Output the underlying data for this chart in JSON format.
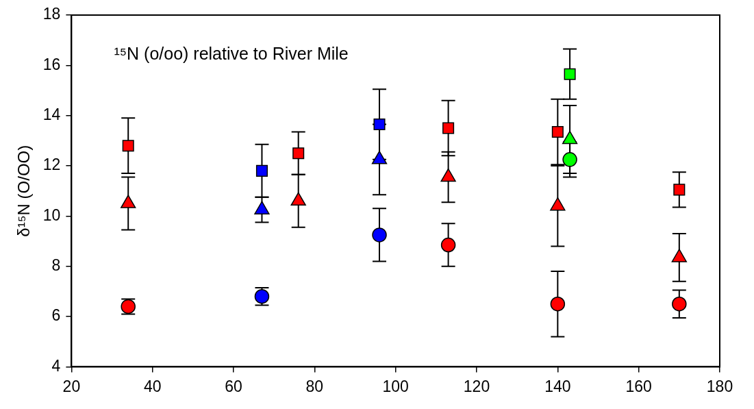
{
  "chart_data": {
    "type": "scatter",
    "ylabel": "δ¹⁵N (O/OO)",
    "annotations": [
      "¹⁵N (o/oo) relative to River Mile"
    ],
    "xlim": [
      20,
      180
    ],
    "xticks": [
      20,
      40,
      60,
      80,
      100,
      120,
      140,
      160,
      180
    ],
    "ylim": [
      4,
      18
    ],
    "yticks": [
      4,
      6,
      8,
      10,
      12,
      14,
      16,
      18
    ],
    "grid": false,
    "legend": false,
    "series": [
      {
        "color": "#ff0000",
        "marker": "square",
        "x": [
          34,
          76,
          113,
          140,
          170
        ],
        "values": [
          12.8,
          12.5,
          13.5,
          13.35,
          11.05
        ],
        "errors": [
          1.1,
          0.85,
          1.1,
          1.3,
          0.7
        ]
      },
      {
        "color": "#ff0000",
        "marker": "triangle",
        "x": [
          34,
          76,
          113,
          140,
          170
        ],
        "values": [
          10.5,
          10.6,
          11.55,
          10.4,
          8.35
        ],
        "errors": [
          1.05,
          1.05,
          1.0,
          1.6,
          0.95
        ]
      },
      {
        "color": "#ff0000",
        "marker": "circle",
        "x": [
          34,
          113,
          140,
          170
        ],
        "values": [
          6.4,
          8.85,
          6.5,
          6.5
        ],
        "errors": [
          0.3,
          0.85,
          1.3,
          0.55
        ]
      },
      {
        "color": "#0000ff",
        "marker": "square",
        "x": [
          67,
          96
        ],
        "values": [
          11.8,
          13.65
        ],
        "errors": [
          1.05,
          1.4
        ]
      },
      {
        "color": "#0000ff",
        "marker": "triangle",
        "x": [
          67,
          96
        ],
        "values": [
          10.25,
          12.25
        ],
        "errors": [
          0.5,
          1.4
        ]
      },
      {
        "color": "#0000ff",
        "marker": "circle",
        "x": [
          67,
          96
        ],
        "values": [
          6.8,
          9.25
        ],
        "errors": [
          0.35,
          1.05
        ]
      },
      {
        "color": "#00ff00",
        "marker": "square",
        "x": [
          143
        ],
        "values": [
          15.65
        ],
        "errors": [
          1.0
        ]
      },
      {
        "color": "#00ff00",
        "marker": "triangle",
        "x": [
          143
        ],
        "values": [
          13.05
        ],
        "errors": [
          1.35
        ]
      },
      {
        "color": "#00ff00",
        "marker": "circle",
        "x": [
          143
        ],
        "values": [
          12.25
        ],
        "errors": [
          0.7
        ]
      }
    ]
  }
}
